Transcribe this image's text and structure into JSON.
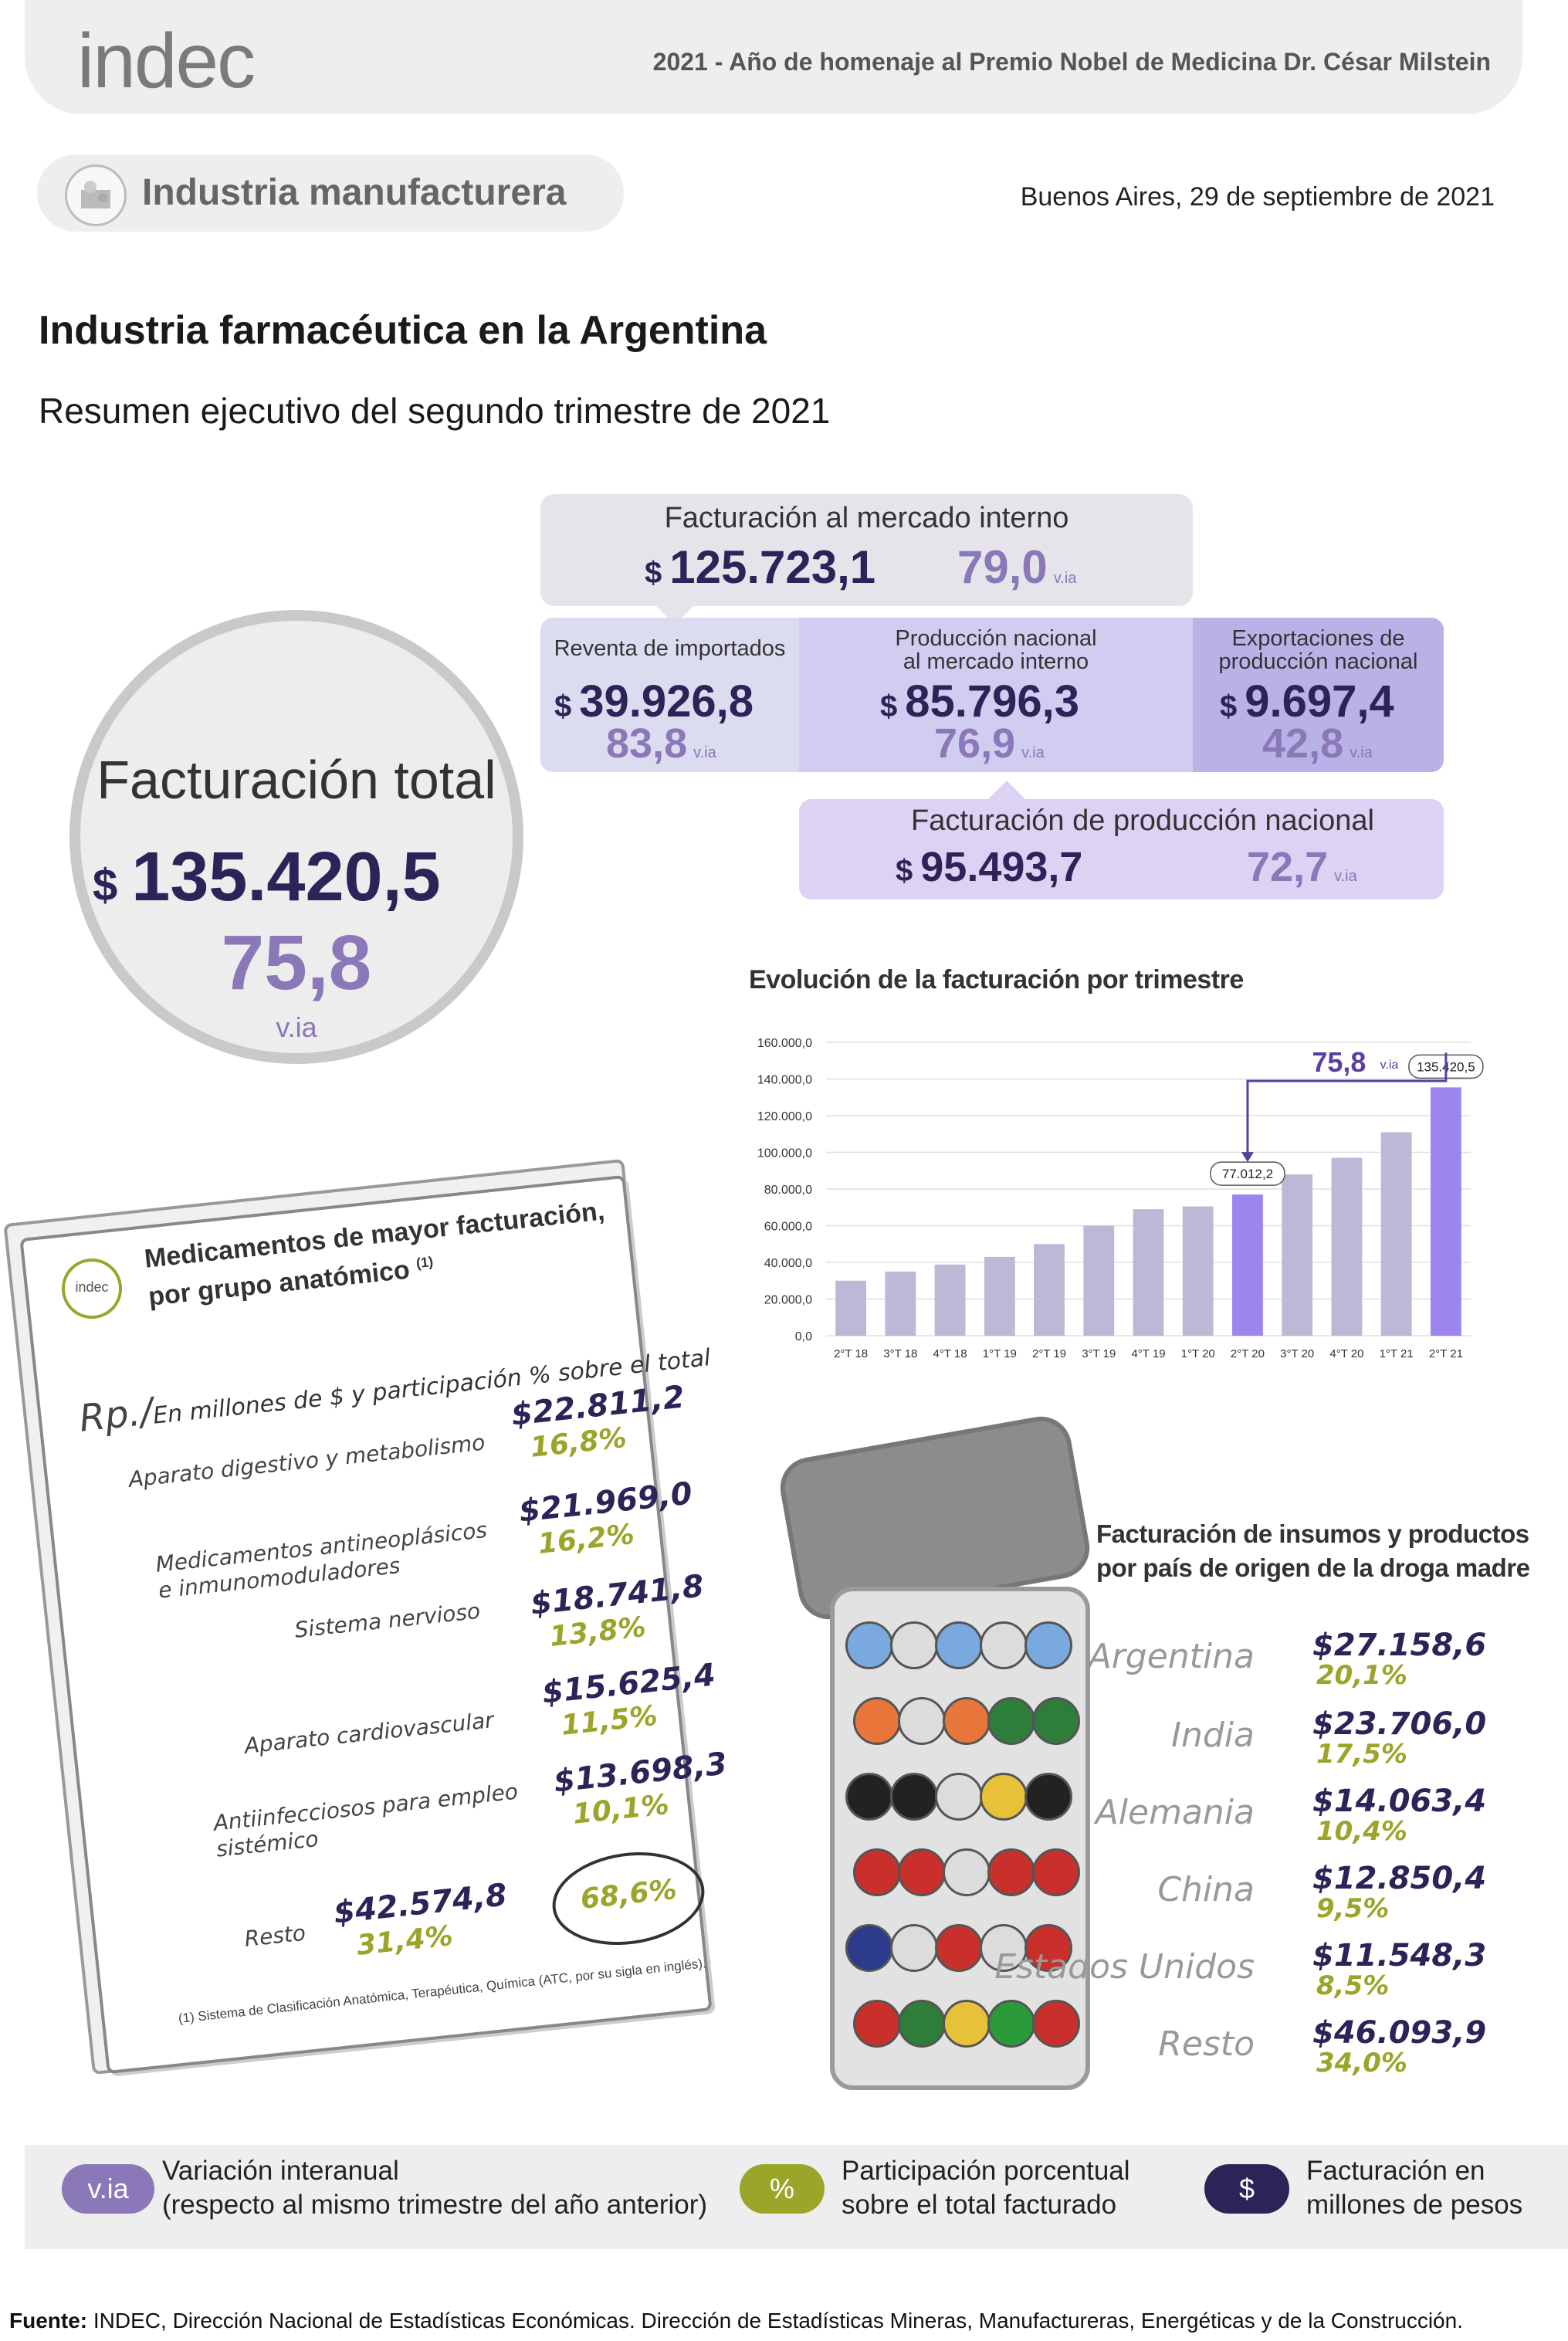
{
  "header": {
    "logo": "indec",
    "year_note": "2021 - Año de homenaje al Premio Nobel de Medicina Dr. César Milstein",
    "section": "Industria manufacturera",
    "date": "Buenos Aires, 29 de septiembre de 2021",
    "title": "Industria farmacéutica en la Argentina",
    "subtitle": "Resumen ejecutivo del segundo trimestre de 2021"
  },
  "summary": {
    "currency": "$",
    "via_suffix": "v.ia",
    "total": {
      "label": "Facturación total",
      "value": "135.420,5",
      "via": "75,8",
      "via_label": "v.ia"
    },
    "internal": {
      "label": "Facturación al mercado interno",
      "value": "125.723,1",
      "via": "79,0"
    },
    "resale": {
      "label": "Reventa de importados",
      "value": "39.926,8",
      "via": "83,8"
    },
    "national_internal": {
      "label_1": "Producción nacional",
      "label_2": "al mercado interno",
      "value": "85.796,3",
      "via": "76,9"
    },
    "exports": {
      "label_1": "Exportaciones de",
      "label_2": "producción nacional",
      "value": "9.697,4",
      "via": "42,8"
    },
    "national": {
      "label": "Facturación de producción nacional",
      "value": "95.493,7",
      "via": "72,7"
    }
  },
  "chart_data": {
    "type": "bar",
    "title": "Evolución de la facturación por trimestre",
    "categories": [
      "2°T 18",
      "3°T 18",
      "4°T 18",
      "1°T 19",
      "2°T 19",
      "3°T 19",
      "4°T 19",
      "1°T 20",
      "2°T 20",
      "3°T 20",
      "4°T 20",
      "1°T 21",
      "2°T 21"
    ],
    "values": [
      30000,
      35000,
      38800,
      43000,
      50000,
      60000,
      69000,
      70500,
      77012.2,
      88000,
      97000,
      111000,
      135420.5
    ],
    "ylim": [
      0,
      160000
    ],
    "yticks": [
      "0,0",
      "20.000,0",
      "40.000,0",
      "60.000,0",
      "80.000,0",
      "100.000,0",
      "120.000,0",
      "140.000,0",
      "160.000,0"
    ],
    "ytick_values": [
      0,
      20000,
      40000,
      60000,
      80000,
      100000,
      120000,
      140000,
      160000
    ],
    "highlight_indices": [
      8,
      12
    ],
    "data_labels": {
      "8": "77.012,2",
      "12": "135.420,5"
    },
    "annotation": {
      "value": "75,8",
      "suffix": "v.ia"
    },
    "colors": {
      "normal": "#bdb8d6",
      "highlight": "#9c86ee",
      "annotation": "#5a3fa0"
    }
  },
  "medicines": {
    "title_1": "Medicamentos de mayor facturación,",
    "title_2": "por grupo anatómico",
    "note_mark": "(1)",
    "rx": "Rp./",
    "subtitle": "En millones de $ y participación % sobre el total",
    "items": [
      {
        "name_1": "Aparato digestivo y metabolismo",
        "name_2": "",
        "value": "$22.811,2",
        "pct": "16,8%"
      },
      {
        "name_1": "Medicamentos antineoplásicos",
        "name_2": "e inmunomoduladores",
        "value": "$21.969,0",
        "pct": "16,2%"
      },
      {
        "name_1": "Sistema nervioso",
        "name_2": "",
        "value": "$18.741,8",
        "pct": "13,8%"
      },
      {
        "name_1": "Aparato cardiovascular",
        "name_2": "",
        "value": "$15.625,4",
        "pct": "11,5%"
      },
      {
        "name_1": "Antiinfecciosos para empleo",
        "name_2": "sistémico",
        "value": "$13.698,3",
        "pct": "10,1%"
      }
    ],
    "subtotal": "68,6%",
    "rest": {
      "name": "Resto",
      "value": "$42.574,8",
      "pct": "31,4%"
    },
    "footnote": "(1) Sistema de Clasificación Anatómica, Terapéutica, Química (ATC, por su sigla en inglés).",
    "logo": "indec"
  },
  "countries": {
    "title_1": "Facturación de insumos y productos",
    "title_2": "por país de origen de la droga madre",
    "items": [
      {
        "name": "Argentina",
        "value": "$27.158,6",
        "pct": "20,1%"
      },
      {
        "name": "India",
        "value": "$23.706,0",
        "pct": "17,5%"
      },
      {
        "name": "Alemania",
        "value": "$14.063,4",
        "pct": "10,4%"
      },
      {
        "name": "China",
        "value": "$12.850,4",
        "pct": "9,5%"
      },
      {
        "name": "Estados Unidos",
        "value": "$11.548,3",
        "pct": "8,5%"
      },
      {
        "name": "Resto",
        "value": "$46.093,9",
        "pct": "34,0%"
      }
    ]
  },
  "legend": {
    "via_badge": "v.ia",
    "via_text_1": "Variación interanual",
    "via_text_2": "(respecto al mismo trimestre del año anterior)",
    "pct_badge": "%",
    "pct_text_1": "Participación porcentual",
    "pct_text_2": "sobre el total facturado",
    "usd_badge": "$",
    "usd_text_1": "Facturación en",
    "usd_text_2": "millones de pesos",
    "colors": {
      "via": "#8a78b8",
      "pct": "#9aa52a",
      "usd": "#2d2358"
    }
  },
  "source": {
    "label": "Fuente:",
    "text": " INDEC, Dirección Nacional de Estadísticas Económicas. Dirección de Estadísticas Mineras, Manufactureras, Energéticas y de la Construcción."
  }
}
